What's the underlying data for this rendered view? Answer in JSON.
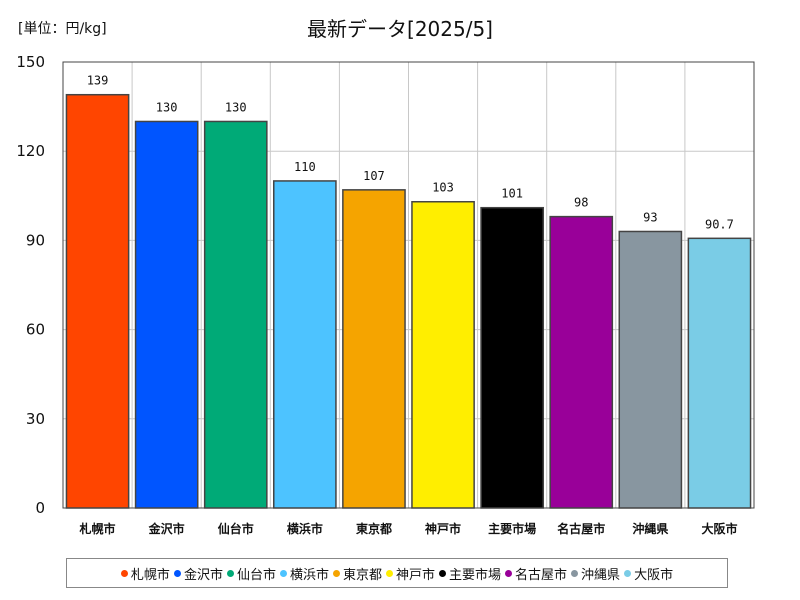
{
  "unit_label": "[単位：円/kg]",
  "chart_data": {
    "type": "bar",
    "title": "最新データ[2025/5]",
    "xlabel": "",
    "ylabel": "",
    "ylim": [
      0,
      150
    ],
    "yticks": [
      0,
      30,
      60,
      90,
      120,
      150
    ],
    "grid": true,
    "legend_position": "bottom",
    "categories": [
      "札幌市",
      "金沢市",
      "仙台市",
      "横浜市",
      "東京都",
      "神戸市",
      "主要市場",
      "名古屋市",
      "沖縄県",
      "大阪市"
    ],
    "values": [
      139,
      130,
      130,
      110,
      107,
      103,
      101,
      98,
      93,
      90.7
    ],
    "value_labels": [
      "139",
      "130",
      "130",
      "110",
      "107",
      "103",
      "101",
      "98",
      "93",
      "90.7"
    ],
    "colors": [
      "#FF4500",
      "#0055FF",
      "#00AA77",
      "#4DC3FF",
      "#F5A400",
      "#FFEE00",
      "#000000",
      "#990099",
      "#8896A0",
      "#7ACCE6"
    ]
  }
}
